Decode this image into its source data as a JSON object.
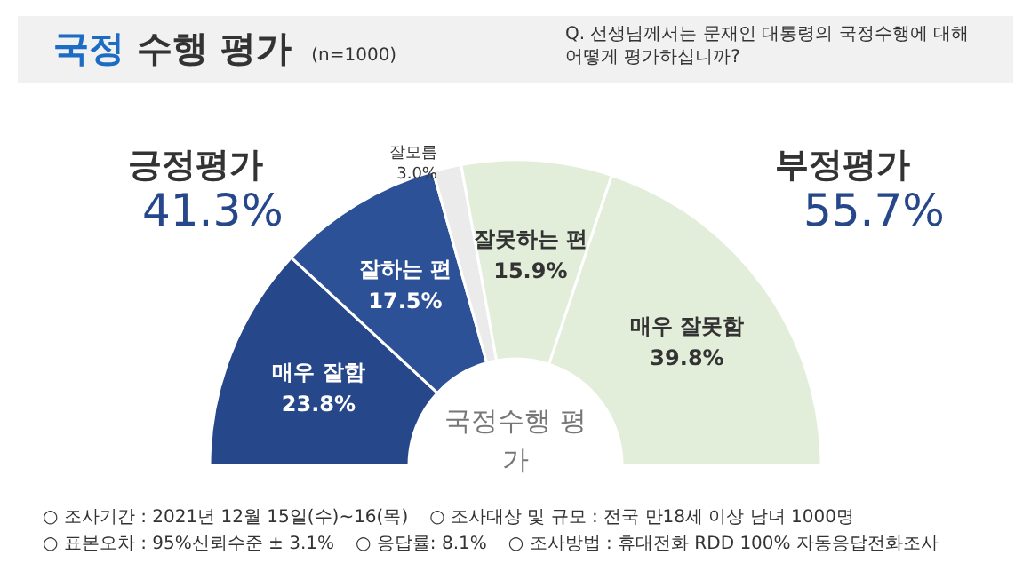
{
  "chart_data": {
    "type": "donut",
    "title": "국정 수행 평가",
    "subtitle": "(n=1000)",
    "categories": [
      "매우 잘함",
      "잘하는 편",
      "잘모름",
      "잘못하는 편",
      "매우 잘못함"
    ],
    "values": [
      23.8,
      17.5,
      3.0,
      15.9,
      39.8
    ],
    "colors": [
      "#27478b",
      "#2c5196",
      "#ebebeb",
      "#e2eed9",
      "#e2eed9"
    ],
    "value_labels": [
      "23.8%",
      "17.5%",
      "3.0%",
      "15.9%",
      "39.8%"
    ],
    "annotations": [
      "Q. 선생님께서는 문재인 대통령의 국정수행에 대해 어떻게 평가하십니까?",
      "긍정평가",
      "41.3%",
      "부정평가",
      "55.7%",
      "국정수행 평가",
      "○ 조사기간 : 2021년 12월 15일(수)~16(목)",
      "○ 조사대상 및 규모 : 전국 만18세 이상 남녀 1000명",
      "○ 표본오차 : 95%신뢰수준 ± 3.1%",
      "○ 응답률: 8.1%",
      "○ 조사방법 : 휴대전화 RDD 100% 자동응답전화조사"
    ]
  }
}
